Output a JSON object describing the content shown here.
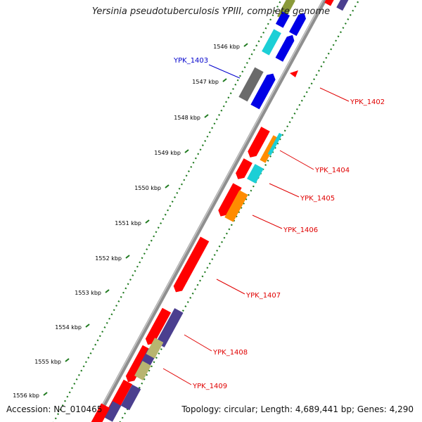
{
  "title": "Yersinia pseudotuberculosis YPIII, complete genome",
  "footer": {
    "accession": "Accession: NC_010465",
    "summary": "Topology: circular; Length: 4,689,441 bp; Genes: 4,290"
  },
  "colors": {
    "backbone": "#8a8a8a",
    "tick": "#1f7a1f",
    "red": "#ff0000",
    "blue": "#0000e6",
    "cyan": "#1ccfd6",
    "orange": "#ff8c00",
    "gray": "#6b6b6b",
    "purple": "#4b3f8f",
    "khaki": "#b8b570",
    "olive": "#8a9a3a",
    "label_red": "#e00000",
    "label_blue": "#0000cc"
  },
  "kbp_ticks": [
    "1546 kbp",
    "1547 kbp",
    "1548 kbp",
    "1549 kbp",
    "1550 kbp",
    "1551 kbp",
    "1552 kbp",
    "1553 kbp",
    "1554 kbp",
    "1555 kbp",
    "1556 kbp"
  ],
  "gene_labels": [
    "YPK_1403",
    "YPK_1402",
    "YPK_1404",
    "YPK_1405",
    "YPK_1406",
    "YPK_1407",
    "YPK_1408",
    "YPK_1409"
  ]
}
